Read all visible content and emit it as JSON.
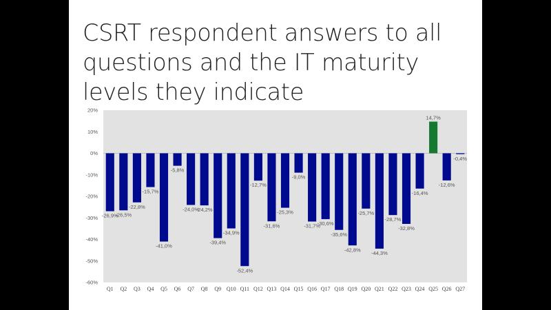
{
  "slide": {
    "title": "CSRT respondent answers to all questions and the IT maturity levels they indicate"
  },
  "chart_data": {
    "type": "bar",
    "categories": [
      "Q1",
      "Q2",
      "Q3",
      "Q4",
      "Q5",
      "Q6",
      "Q7",
      "Q8",
      "Q9",
      "Q10",
      "Q11",
      "Q12",
      "Q13",
      "Q14",
      "Q15",
      "Q16",
      "Q17",
      "Q18",
      "Q19",
      "Q20",
      "Q21",
      "Q22",
      "Q23",
      "Q24",
      "Q25",
      "Q26",
      "Q27"
    ],
    "values": [
      -26.9,
      -26.5,
      -22.8,
      -15.7,
      -41.0,
      -5.8,
      -24.0,
      -24.2,
      -39.4,
      -34.9,
      -52.4,
      -12.7,
      -31.6,
      -25.3,
      -9.0,
      -31.7,
      -30.6,
      -35.6,
      -42.8,
      -25.7,
      -44.3,
      -28.7,
      -32.8,
      -16.4,
      14.7,
      -12.6,
      -0.4
    ],
    "data_labels": [
      "-26,9%",
      "-26,5%",
      "-22,8%",
      "-15,7%",
      "-41,0%",
      "-5,8%",
      "-24,0%",
      "-24,2%",
      "-39,4%",
      "-34,9%",
      "-52,4%",
      "-12,7%",
      "-31,6%",
      "-25,3%",
      "-9,0%",
      "-31,7%",
      "-30,6%",
      "-35,6%",
      "-42,8%",
      "-25,7%",
      "-44,3%",
      "-28,7%",
      "-32,8%",
      "-16,4%",
      "14,7%",
      "-12,6%",
      "-0,4%"
    ],
    "yticks": [
      20,
      10,
      0,
      -10,
      -20,
      -30,
      -40,
      -50,
      -60
    ],
    "ytick_labels": [
      "20%",
      "10%",
      "0%",
      "-10%",
      "-20%",
      "-30%",
      "-40%",
      "-50%",
      "-60%"
    ],
    "ylim": [
      -60,
      20
    ],
    "grid": false,
    "colors": {
      "negative": "#000a8f",
      "positive": "#147a30",
      "plot_background": "#e2e2e2"
    }
  }
}
